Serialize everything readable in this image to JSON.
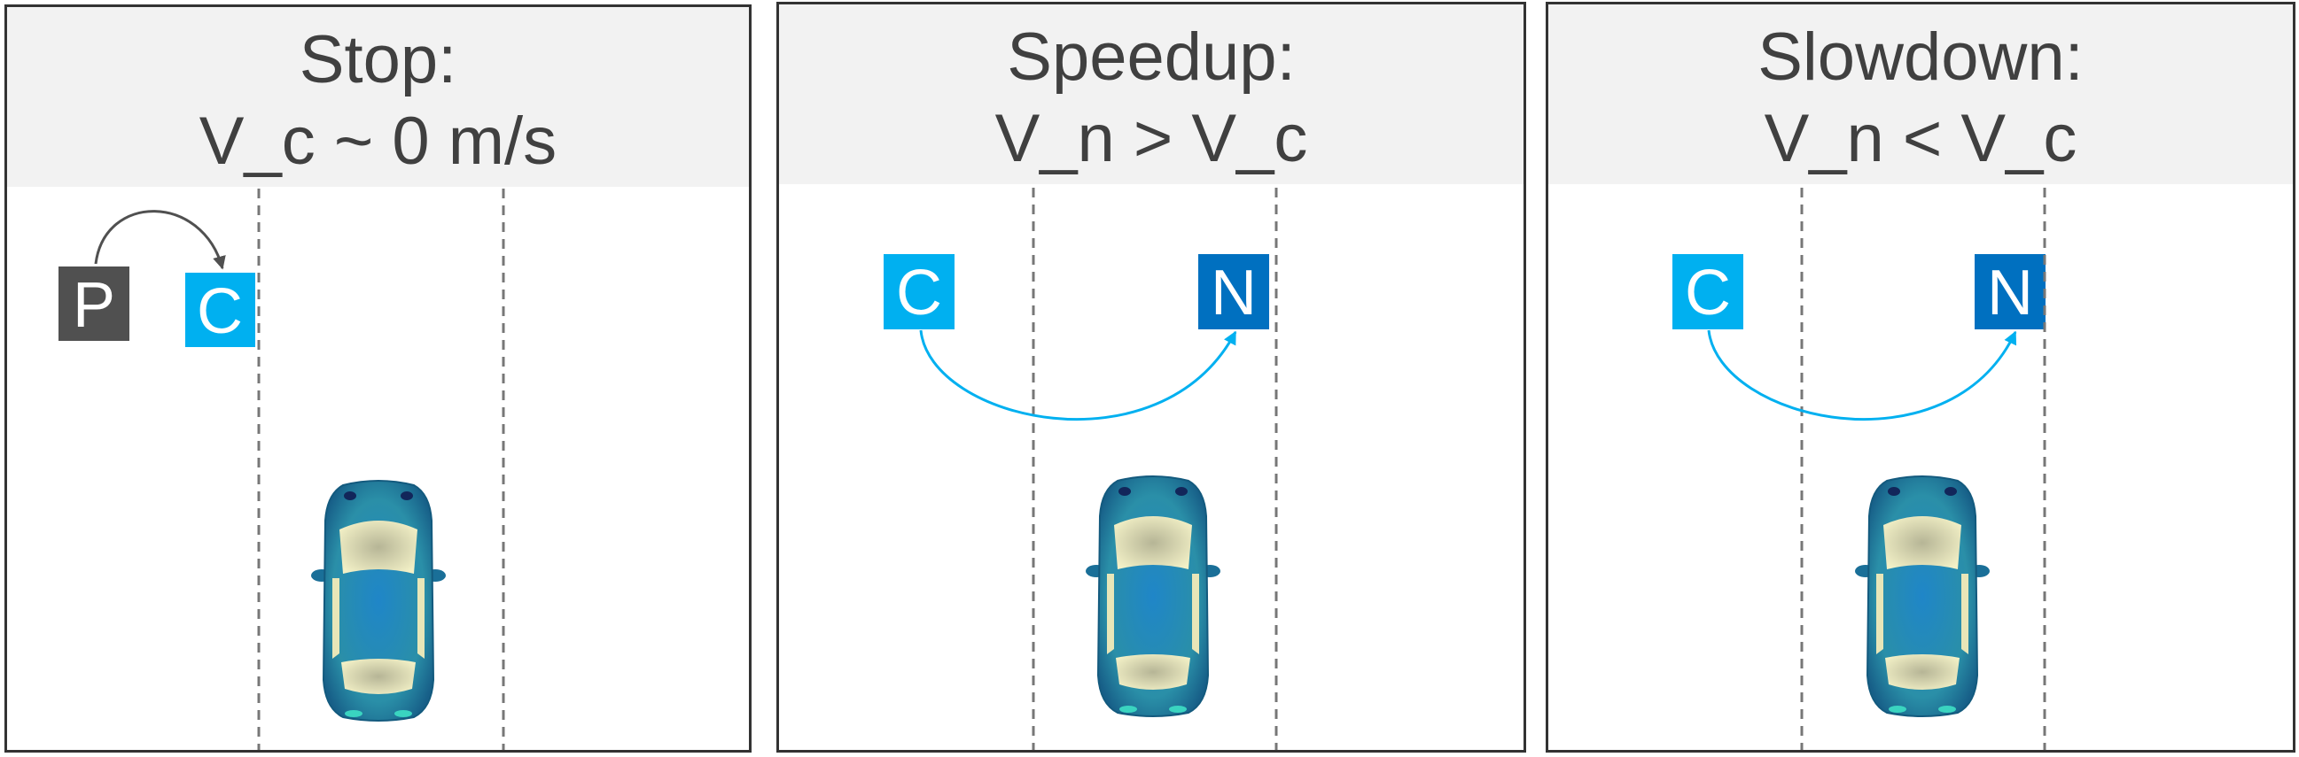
{
  "panels": [
    {
      "name": "stop",
      "title_line1": "Stop:",
      "title_line2": "V_c ~ 0 m/s",
      "markers": [
        {
          "label": "P",
          "color": "#505050"
        },
        {
          "label": "C",
          "color": "#00b0f0"
        }
      ],
      "arrow_color": "#505050"
    },
    {
      "name": "speedup",
      "title_line1": "Speedup:",
      "title_line2": "V_n > V_c",
      "markers": [
        {
          "label": "C",
          "color": "#00b0f0"
        },
        {
          "label": "N",
          "color": "#0070c0"
        }
      ],
      "arrow_color": "#00b0f0"
    },
    {
      "name": "slowdown",
      "title_line1": "Slowdown:",
      "title_line2": "V_n < V_c",
      "markers": [
        {
          "label": "C",
          "color": "#00b0f0"
        },
        {
          "label": "N",
          "color": "#0070c0"
        }
      ],
      "arrow_color": "#00b0f0"
    }
  ],
  "colors": {
    "border": "#333333",
    "header_bg": "#f2f2f2",
    "lane_line": "#777777",
    "car_body": "#1f7fa8",
    "car_window": "#e8e6b8"
  }
}
